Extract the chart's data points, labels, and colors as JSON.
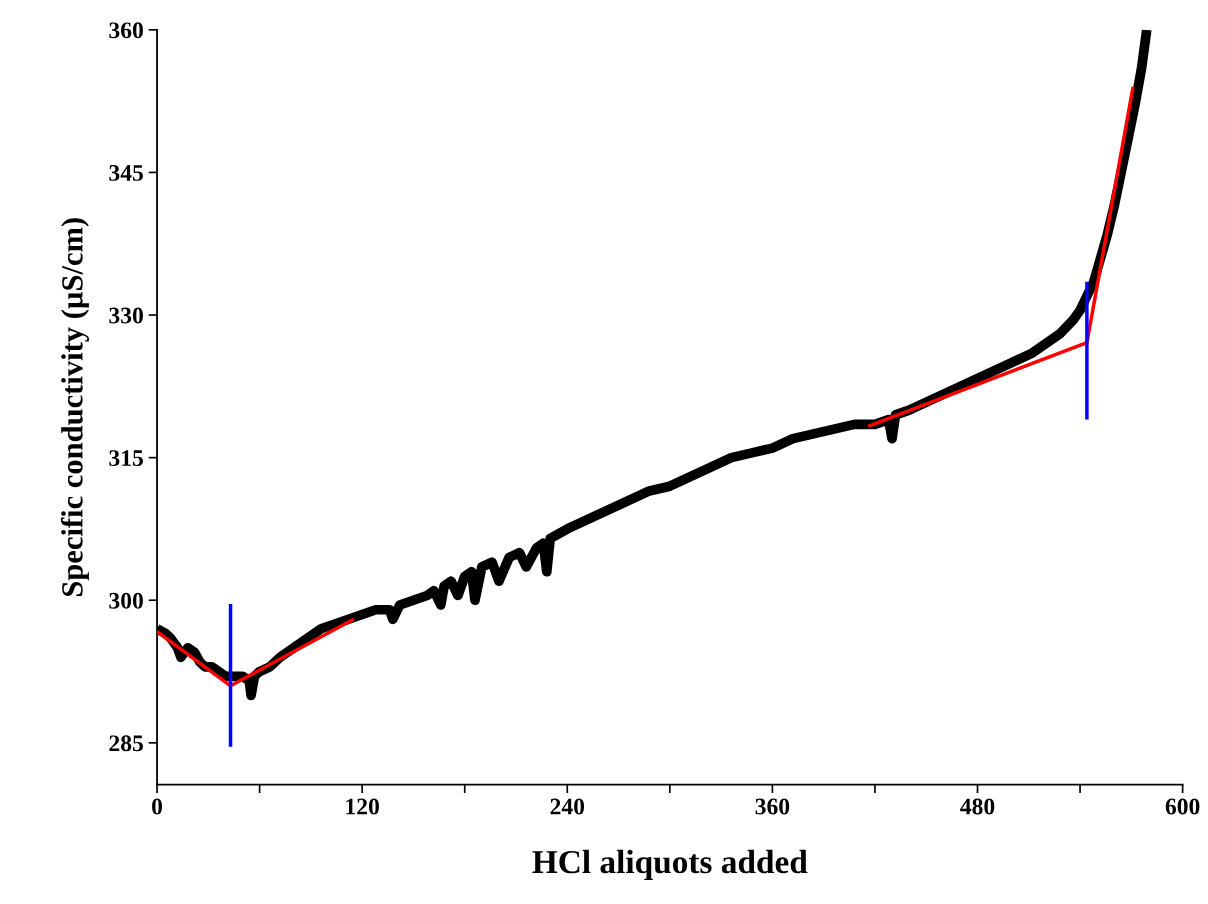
{
  "chart_data": {
    "type": "line",
    "xlabel": "HCl aliquots added",
    "ylabel": "Specific conductivity (µS/cm)",
    "xlim": [
      0,
      600
    ],
    "ylim": [
      280.6,
      360
    ],
    "xticks": [
      0,
      {
        "value": 60,
        "label": null
      },
      120,
      {
        "value": 180,
        "label": null
      },
      240,
      {
        "value": 300,
        "label": null
      },
      360,
      {
        "value": 420,
        "label": null
      },
      480,
      {
        "value": 540,
        "label": null
      },
      600
    ],
    "yticks": [
      285,
      300,
      315,
      330,
      345,
      360
    ],
    "grid": false,
    "marker": "none",
    "line_style": "solid",
    "series": [
      {
        "color": "#000000",
        "x": [
          0,
          5,
          8,
          12,
          14,
          18,
          22,
          25,
          28,
          32,
          36,
          40,
          45,
          50,
          54,
          55,
          57,
          60,
          66,
          72,
          80,
          88,
          96,
          104,
          112,
          120,
          128,
          136,
          138,
          142,
          150,
          158,
          162,
          166,
          168,
          172,
          176,
          180,
          184,
          186,
          190,
          196,
          200,
          206,
          212,
          216,
          222,
          226,
          228,
          230,
          240,
          252,
          264,
          276,
          288,
          300,
          312,
          324,
          336,
          348,
          360,
          372,
          384,
          396,
          408,
          420,
          428,
          430,
          432,
          440,
          452,
          464,
          476,
          488,
          500,
          512,
          520,
          528,
          536,
          540,
          544,
          548,
          552,
          556,
          560,
          564,
          568,
          572,
          576,
          579
        ],
        "values": [
          297,
          296.5,
          296,
          295,
          294,
          295,
          294.5,
          293.5,
          293,
          293,
          292.5,
          292,
          292,
          292,
          291.5,
          290,
          292,
          292.5,
          293,
          294,
          295,
          296,
          297,
          297.5,
          298,
          298.5,
          299,
          299,
          298,
          299.5,
          300,
          300.5,
          301,
          299.5,
          301.5,
          302,
          300.5,
          302.5,
          303,
          300,
          303.5,
          304,
          302,
          304.5,
          305,
          303.5,
          305.5,
          306,
          303,
          306.5,
          307.5,
          308.5,
          309.5,
          310.5,
          311.5,
          312,
          313,
          314,
          315,
          315.5,
          316,
          317,
          317.5,
          318,
          318.5,
          318.5,
          319,
          317,
          319.5,
          320,
          321,
          322,
          323,
          324,
          325,
          326,
          327,
          328,
          329.5,
          330.5,
          332,
          333.5,
          336,
          338.5,
          341.5,
          345,
          348.5,
          352,
          356,
          360
        ]
      },
      {
        "color": "#ff0000",
        "x": [
          0,
          43,
          115
        ],
        "values": [
          296.7,
          291,
          298
        ]
      },
      {
        "color": "#ff0000",
        "x": [
          416,
          544,
          571
        ],
        "values": [
          318.3,
          327.1,
          354
        ]
      },
      {
        "color": "#0000ff",
        "x": [
          43,
          43
        ],
        "values": [
          284.6,
          299.6
        ]
      },
      {
        "color": "#0000ff",
        "x": [
          544,
          544
        ],
        "values": [
          319,
          333.5
        ]
      }
    ]
  }
}
